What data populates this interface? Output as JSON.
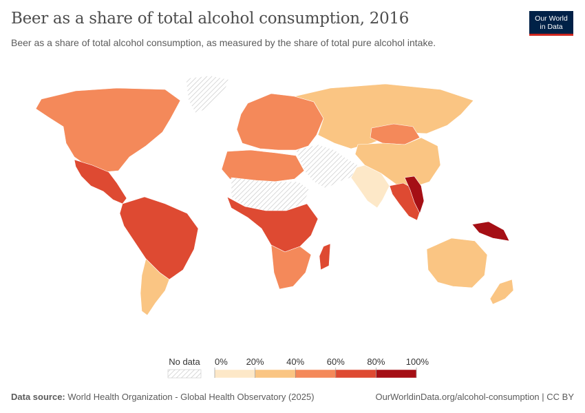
{
  "header": {
    "title": "Beer as a share of total alcohol consumption, 2016",
    "subtitle": "Beer as a share of total alcohol consumption, as measured by the share of total pure alcohol intake."
  },
  "logo": {
    "line1": "Our World",
    "line2": "in Data"
  },
  "legend": {
    "no_data_label": "No data",
    "ticks": [
      "0%",
      "20%",
      "40%",
      "60%",
      "80%",
      "100%"
    ],
    "bins": [
      {
        "range": [
          0,
          20
        ],
        "color": "#fde8c8"
      },
      {
        "range": [
          20,
          40
        ],
        "color": "#fac583"
      },
      {
        "range": [
          40,
          60
        ],
        "color": "#f4895a"
      },
      {
        "range": [
          60,
          80
        ],
        "color": "#de4a32"
      },
      {
        "range": [
          80,
          100
        ],
        "color": "#a50f15"
      }
    ],
    "no_data_color": "#e0e0e0"
  },
  "footer": {
    "source_label": "Data source:",
    "source_text": "World Health Organization - Global Health Observatory (2025)",
    "url": "OurWorldinData.org/alcohol-consumption | CC BY"
  },
  "chart_data": {
    "type": "choropleth",
    "unit": "%",
    "regions": [
      {
        "region": "North America",
        "bin": 2
      },
      {
        "region": "Mexico and Central America",
        "bin": 3
      },
      {
        "region": "Northern South America",
        "bin": 3
      },
      {
        "region": "Southern South America",
        "bin": 1
      },
      {
        "region": "Greenland",
        "bin": -1
      },
      {
        "region": "Europe",
        "bin": 2
      },
      {
        "region": "Russia and Central Asia",
        "bin": 1
      },
      {
        "region": "Mongolia",
        "bin": 2
      },
      {
        "region": "China",
        "bin": 1
      },
      {
        "region": "India",
        "bin": 0
      },
      {
        "region": "Middle East",
        "bin": -1
      },
      {
        "region": "North Africa",
        "bin": 2
      },
      {
        "region": "Sahara",
        "bin": -1
      },
      {
        "region": "Central Africa",
        "bin": 3
      },
      {
        "region": "Southern Africa",
        "bin": 2
      },
      {
        "region": "Madagascar",
        "bin": 3
      },
      {
        "region": "Southeast Asia",
        "bin": 3
      },
      {
        "region": "Vietnam and Laos",
        "bin": 4
      },
      {
        "region": "Papua New Guinea",
        "bin": 4
      },
      {
        "region": "Australia",
        "bin": 1
      },
      {
        "region": "New Zealand",
        "bin": 1
      }
    ]
  }
}
